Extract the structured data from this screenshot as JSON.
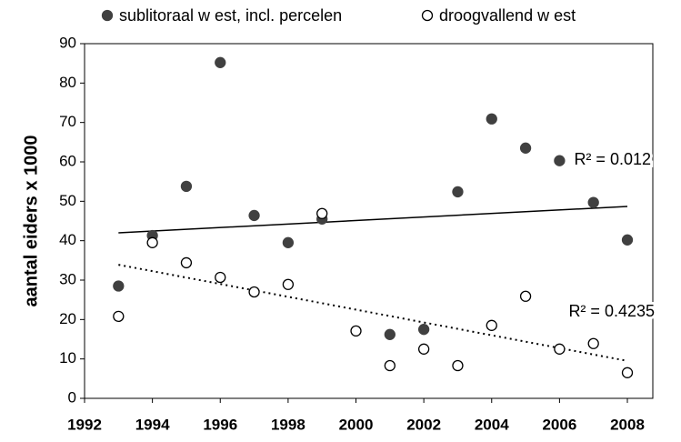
{
  "chart_data": {
    "type": "scatter",
    "y_label": "aantal eiders x 1000",
    "xlim": [
      1992,
      2008.75
    ],
    "xticks": [
      1992,
      1994,
      1996,
      1998,
      2000,
      2002,
      2004,
      2006,
      2008
    ],
    "ylim": [
      0,
      90
    ],
    "yticks": [
      0,
      10,
      20,
      30,
      40,
      50,
      60,
      70,
      80,
      90
    ],
    "series": [
      {
        "name": "sublitoraal w est, incl. percelen",
        "color": "#404040",
        "marker": "filled",
        "x": [
          1993,
          1994,
          1995,
          1996,
          1997,
          1998,
          1999,
          2001,
          2002,
          2003,
          2004,
          2005,
          2006,
          2007,
          2008
        ],
        "values": [
          28.5,
          41.3,
          53.8,
          85.2,
          46.4,
          39.5,
          45.5,
          16.2,
          17.5,
          52.4,
          70.9,
          63.5,
          60.3,
          49.7,
          40.2
        ]
      },
      {
        "name": "droogvallend w est",
        "color": "#000000",
        "marker": "open",
        "x": [
          1993,
          1994,
          1995,
          1996,
          1997,
          1998,
          1999,
          2000,
          2001,
          2002,
          2003,
          2004,
          2005,
          2006,
          2007,
          2008
        ],
        "values": [
          20.8,
          39.5,
          34.4,
          30.7,
          27.0,
          28.9,
          46.9,
          17.1,
          8.3,
          12.5,
          8.3,
          18.5,
          25.9,
          12.5,
          13.9,
          6.5
        ]
      }
    ],
    "trendlines": [
      {
        "style": "solid",
        "x": [
          1993,
          2008
        ],
        "values": [
          42.0,
          48.7
        ],
        "label": "R² = 0.012"
      },
      {
        "style": "dotted",
        "x": [
          1993,
          2008
        ],
        "values": [
          33.9,
          9.5
        ],
        "label": "R² = 0.4235"
      }
    ]
  }
}
